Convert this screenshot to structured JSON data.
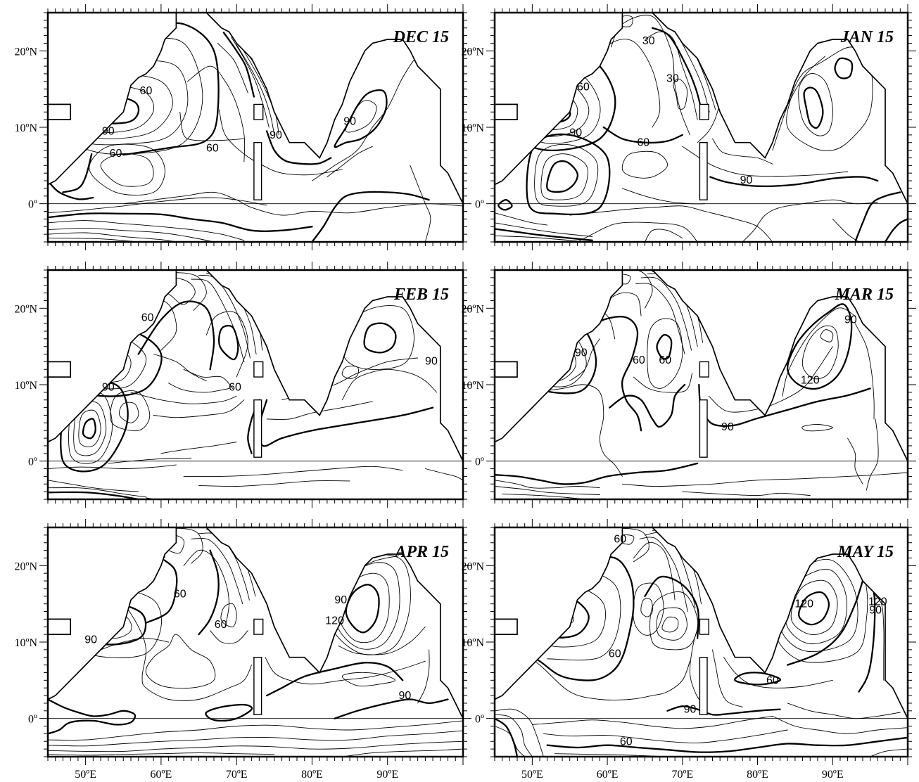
{
  "figure": {
    "lon_range": [
      45,
      100
    ],
    "lat_range": [
      -5,
      25
    ],
    "x_tick_labels": [
      {
        "lon": 50,
        "label": "50ºE"
      },
      {
        "lon": 60,
        "label": "60ºE"
      },
      {
        "lon": 70,
        "label": "70ºE"
      },
      {
        "lon": 80,
        "label": "80ºE"
      },
      {
        "lon": 90,
        "label": "90ºE"
      }
    ],
    "y_tick_labels": [
      {
        "lat": 20,
        "label": "20ºN"
      },
      {
        "lat": 10,
        "label": "10ºN"
      },
      {
        "lat": 0,
        "label": "0º"
      }
    ],
    "contour_levels": [
      30,
      60,
      90,
      120
    ],
    "panels": [
      {
        "id": "dec",
        "title": "DEC 15",
        "contour_labels": [
          {
            "text": "60",
            "lon": 58.0,
            "lat": 14.8
          },
          {
            "text": "90",
            "lon": 53.0,
            "lat": 9.5
          },
          {
            "text": "60",
            "lon": 54.0,
            "lat": 6.6
          },
          {
            "text": "60",
            "lon": 66.8,
            "lat": 7.3
          },
          {
            "text": "90",
            "lon": 85.0,
            "lat": 10.8
          },
          {
            "text": "90",
            "lon": 75.2,
            "lat": 9.0
          }
        ]
      },
      {
        "id": "jan",
        "title": "JAN 15",
        "contour_labels": [
          {
            "text": "30",
            "lon": 65.5,
            "lat": 21.3
          },
          {
            "text": "30",
            "lon": 68.7,
            "lat": 16.4
          },
          {
            "text": "60",
            "lon": 56.8,
            "lat": 15.3
          },
          {
            "text": "90",
            "lon": 55.8,
            "lat": 9.3
          },
          {
            "text": "60",
            "lon": 64.8,
            "lat": 8.0
          },
          {
            "text": "90",
            "lon": 78.5,
            "lat": 3.1
          }
        ]
      },
      {
        "id": "feb",
        "title": "FEB 15",
        "contour_labels": [
          {
            "text": "60",
            "lon": 58.2,
            "lat": 18.8
          },
          {
            "text": "90",
            "lon": 53.0,
            "lat": 9.7
          },
          {
            "text": "60",
            "lon": 69.8,
            "lat": 9.7
          },
          {
            "text": "90",
            "lon": 95.8,
            "lat": 13.1
          }
        ]
      },
      {
        "id": "mar",
        "title": "MAR 15",
        "contour_labels": [
          {
            "text": "90",
            "lon": 56.5,
            "lat": 14.2
          },
          {
            "text": "60",
            "lon": 64.2,
            "lat": 13.2
          },
          {
            "text": "60",
            "lon": 67.7,
            "lat": 13.2
          },
          {
            "text": "90",
            "lon": 92.4,
            "lat": 18.5
          },
          {
            "text": "120",
            "lon": 87.0,
            "lat": 10.6
          },
          {
            "text": "90",
            "lon": 76.0,
            "lat": 4.5
          }
        ]
      },
      {
        "id": "apr",
        "title": "APR 15",
        "contour_labels": [
          {
            "text": "90",
            "lon": 50.7,
            "lat": 10.3
          },
          {
            "text": "60",
            "lon": 62.5,
            "lat": 16.3
          },
          {
            "text": "60",
            "lon": 67.9,
            "lat": 12.3
          },
          {
            "text": "90",
            "lon": 83.8,
            "lat": 15.5
          },
          {
            "text": "120",
            "lon": 83.0,
            "lat": 12.8
          },
          {
            "text": "90",
            "lon": 92.3,
            "lat": 3.0
          }
        ]
      },
      {
        "id": "may",
        "title": "MAY 15",
        "contour_labels": [
          {
            "text": "60",
            "lon": 61.7,
            "lat": 23.5
          },
          {
            "text": "120",
            "lon": 86.2,
            "lat": 15.0
          },
          {
            "text": "120",
            "lon": 96.0,
            "lat": 15.3
          },
          {
            "text": "90",
            "lon": 95.7,
            "lat": 14.2
          },
          {
            "text": "60",
            "lon": 61.0,
            "lat": 8.5
          },
          {
            "text": "60",
            "lon": 82.0,
            "lat": 5.0
          },
          {
            "text": "90",
            "lon": 71.0,
            "lat": 1.2
          },
          {
            "text": "60",
            "lon": 62.5,
            "lat": -3.0
          }
        ]
      }
    ]
  }
}
